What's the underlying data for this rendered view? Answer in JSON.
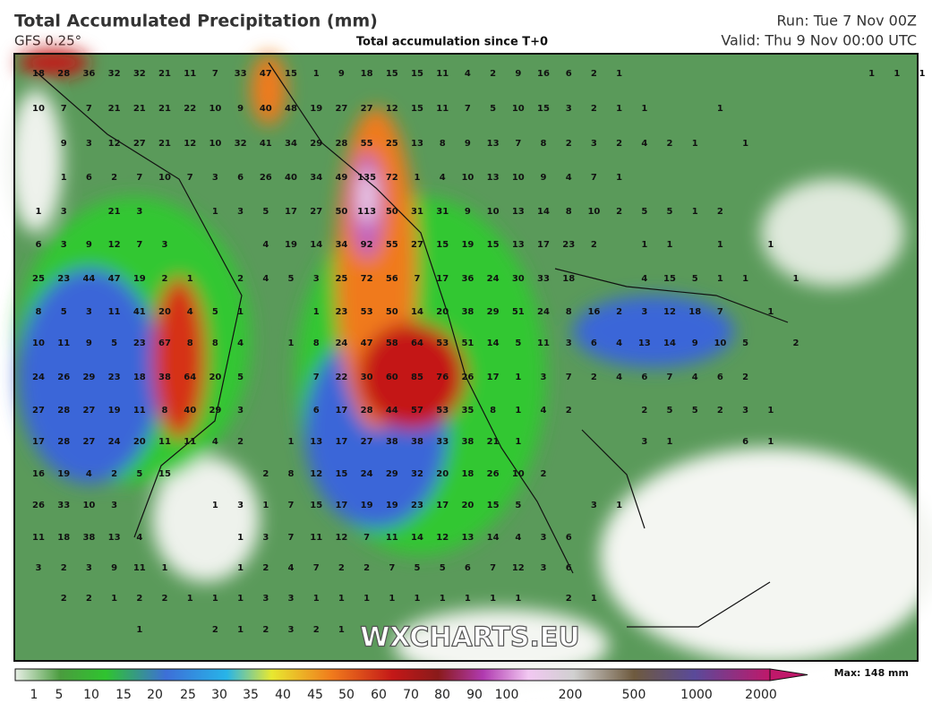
{
  "header": {
    "title": "Total Accumulated Precipitation (mm)",
    "model": "GFS 0.25°",
    "subtitle": "Total accumulation since T+0",
    "run": "Run: Tue 7 Nov 00Z",
    "valid": "Valid: Thu 9 Nov 00:00 UTC"
  },
  "map": {
    "watermark": "WXCHARTS.EU",
    "grid": {
      "rows": [
        [
          18,
          28,
          36,
          32,
          32,
          21,
          11,
          7,
          33,
          47,
          15,
          1,
          9,
          18,
          15,
          15,
          11,
          4,
          2,
          9,
          16,
          6,
          2,
          1,
          null,
          null,
          null,
          null,
          null,
          null,
          null,
          null,
          null,
          1,
          1,
          1
        ],
        [
          10,
          7,
          7,
          21,
          21,
          21,
          22,
          10,
          9,
          40,
          48,
          19,
          27,
          27,
          12,
          15,
          11,
          7,
          5,
          10,
          15,
          3,
          2,
          1,
          1,
          null,
          null,
          1
        ],
        [
          null,
          9,
          3,
          12,
          27,
          21,
          12,
          10,
          32,
          41,
          34,
          29,
          28,
          55,
          25,
          13,
          8,
          9,
          13,
          7,
          8,
          2,
          3,
          2,
          4,
          2,
          1,
          null,
          1
        ],
        [
          null,
          1,
          6,
          2,
          7,
          10,
          7,
          3,
          6,
          26,
          40,
          34,
          49,
          135,
          72,
          1,
          4,
          10,
          13,
          10,
          9,
          4,
          7,
          1
        ],
        [
          1,
          3,
          null,
          21,
          3,
          null,
          null,
          1,
          3,
          5,
          17,
          27,
          50,
          113,
          50,
          31,
          31,
          9,
          10,
          13,
          14,
          8,
          10,
          2,
          5,
          5,
          1,
          2
        ],
        [
          6,
          3,
          9,
          12,
          7,
          3,
          null,
          null,
          null,
          4,
          19,
          14,
          34,
          92,
          55,
          27,
          15,
          19,
          15,
          13,
          17,
          23,
          2,
          null,
          1,
          1,
          null,
          1,
          null,
          1
        ],
        [
          25,
          23,
          44,
          47,
          19,
          2,
          1,
          null,
          2,
          4,
          5,
          3,
          25,
          72,
          56,
          7,
          17,
          36,
          24,
          30,
          33,
          18,
          null,
          null,
          4,
          15,
          5,
          1,
          1,
          null,
          1
        ],
        [
          8,
          5,
          3,
          11,
          41,
          20,
          4,
          5,
          1,
          null,
          null,
          1,
          23,
          53,
          50,
          14,
          20,
          38,
          29,
          51,
          24,
          8,
          16,
          2,
          3,
          12,
          18,
          7,
          null,
          1
        ],
        [
          10,
          11,
          9,
          5,
          23,
          67,
          8,
          8,
          4,
          null,
          1,
          8,
          24,
          47,
          58,
          64,
          53,
          51,
          14,
          5,
          11,
          3,
          6,
          4,
          13,
          14,
          9,
          10,
          5,
          null,
          2
        ],
        [
          24,
          26,
          29,
          23,
          18,
          38,
          64,
          20,
          5,
          null,
          null,
          7,
          22,
          30,
          60,
          85,
          76,
          26,
          17,
          1,
          3,
          7,
          2,
          4,
          6,
          7,
          4,
          6,
          2
        ],
        [
          27,
          28,
          27,
          19,
          11,
          8,
          40,
          29,
          3,
          null,
          null,
          6,
          17,
          28,
          44,
          57,
          53,
          35,
          8,
          1,
          4,
          2,
          null,
          null,
          2,
          5,
          5,
          2,
          3,
          1
        ],
        [
          17,
          28,
          27,
          24,
          20,
          11,
          11,
          4,
          2,
          null,
          1,
          13,
          17,
          27,
          38,
          38,
          33,
          38,
          21,
          1,
          null,
          null,
          null,
          null,
          3,
          1,
          null,
          null,
          6,
          1
        ],
        [
          16,
          19,
          4,
          2,
          5,
          15,
          null,
          null,
          null,
          2,
          8,
          12,
          15,
          24,
          29,
          32,
          20,
          18,
          26,
          10,
          2
        ],
        [
          26,
          33,
          10,
          3,
          null,
          null,
          null,
          1,
          3,
          1,
          7,
          15,
          17,
          19,
          19,
          23,
          17,
          20,
          15,
          5,
          null,
          null,
          3,
          1
        ],
        [
          11,
          18,
          38,
          13,
          4,
          null,
          null,
          null,
          1,
          3,
          7,
          11,
          12,
          7,
          11,
          14,
          12,
          13,
          14,
          4,
          3,
          6
        ],
        [
          3,
          2,
          3,
          9,
          11,
          1,
          null,
          null,
          1,
          2,
          4,
          7,
          2,
          2,
          7,
          5,
          5,
          6,
          7,
          12,
          3,
          6
        ],
        [
          null,
          2,
          2,
          1,
          2,
          2,
          1,
          1,
          1,
          3,
          3,
          1,
          1,
          1,
          1,
          1,
          1,
          1,
          1,
          1,
          null,
          2,
          1
        ],
        [
          null,
          null,
          null,
          null,
          1,
          null,
          null,
          2,
          1,
          2,
          3,
          2,
          1
        ]
      ]
    }
  },
  "legend": {
    "ticks": [
      1,
      5,
      10,
      15,
      20,
      25,
      30,
      35,
      40,
      45,
      50,
      60,
      70,
      80,
      90,
      100,
      200,
      500,
      1000,
      2000
    ],
    "max": "Max: 148 mm"
  }
}
